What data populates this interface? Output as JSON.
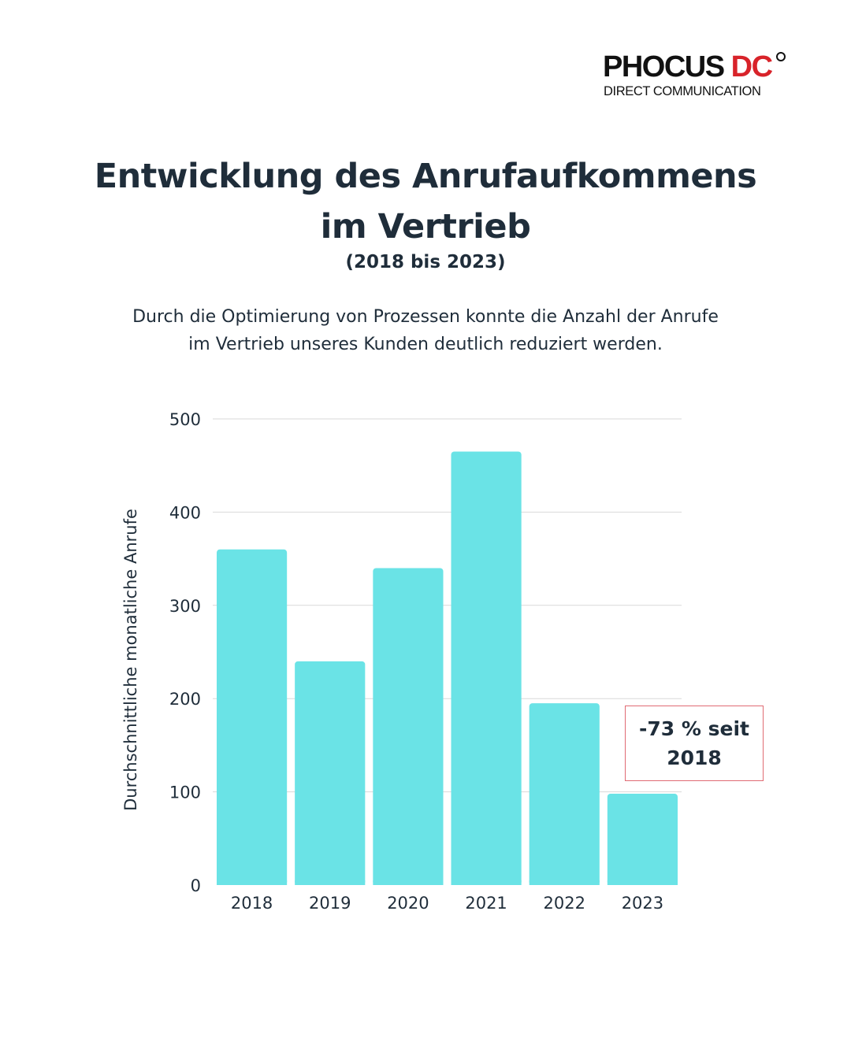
{
  "logo": {
    "brand": "PHOCUS",
    "brand_accent": "DC",
    "tagline": "DIRECT COMMUNICATION"
  },
  "header": {
    "title_line1": "Entwicklung des Anrufaufkommens",
    "title_line2": "im Vertrieb",
    "subtitle": "(2018 bis 2023)",
    "description_line1": "Durch die Optimierung von Prozessen konnte die Anzahl der Anrufe",
    "description_line2": "im Vertrieb unseres Kunden deutlich reduziert werden."
  },
  "callout": {
    "line1": "-73 % seit",
    "line2": "2018"
  },
  "colors": {
    "bar": "#6ae3e6",
    "text": "#1f2d3a",
    "grid": "#d9d9d9",
    "logo_accent": "#d8232a",
    "callout_border": "#e06b73"
  },
  "chart_data": {
    "type": "bar",
    "title": "",
    "categories": [
      "2018",
      "2019",
      "2020",
      "2021",
      "2022",
      "2023"
    ],
    "values": [
      360,
      240,
      340,
      465,
      195,
      98
    ],
    "xlabel": "",
    "ylabel": "Durchschnittliche monatliche Anrufe",
    "ylim": [
      0,
      500
    ],
    "yticks": [
      0,
      100,
      200,
      300,
      400,
      500
    ],
    "grid": true,
    "legend": "none"
  }
}
